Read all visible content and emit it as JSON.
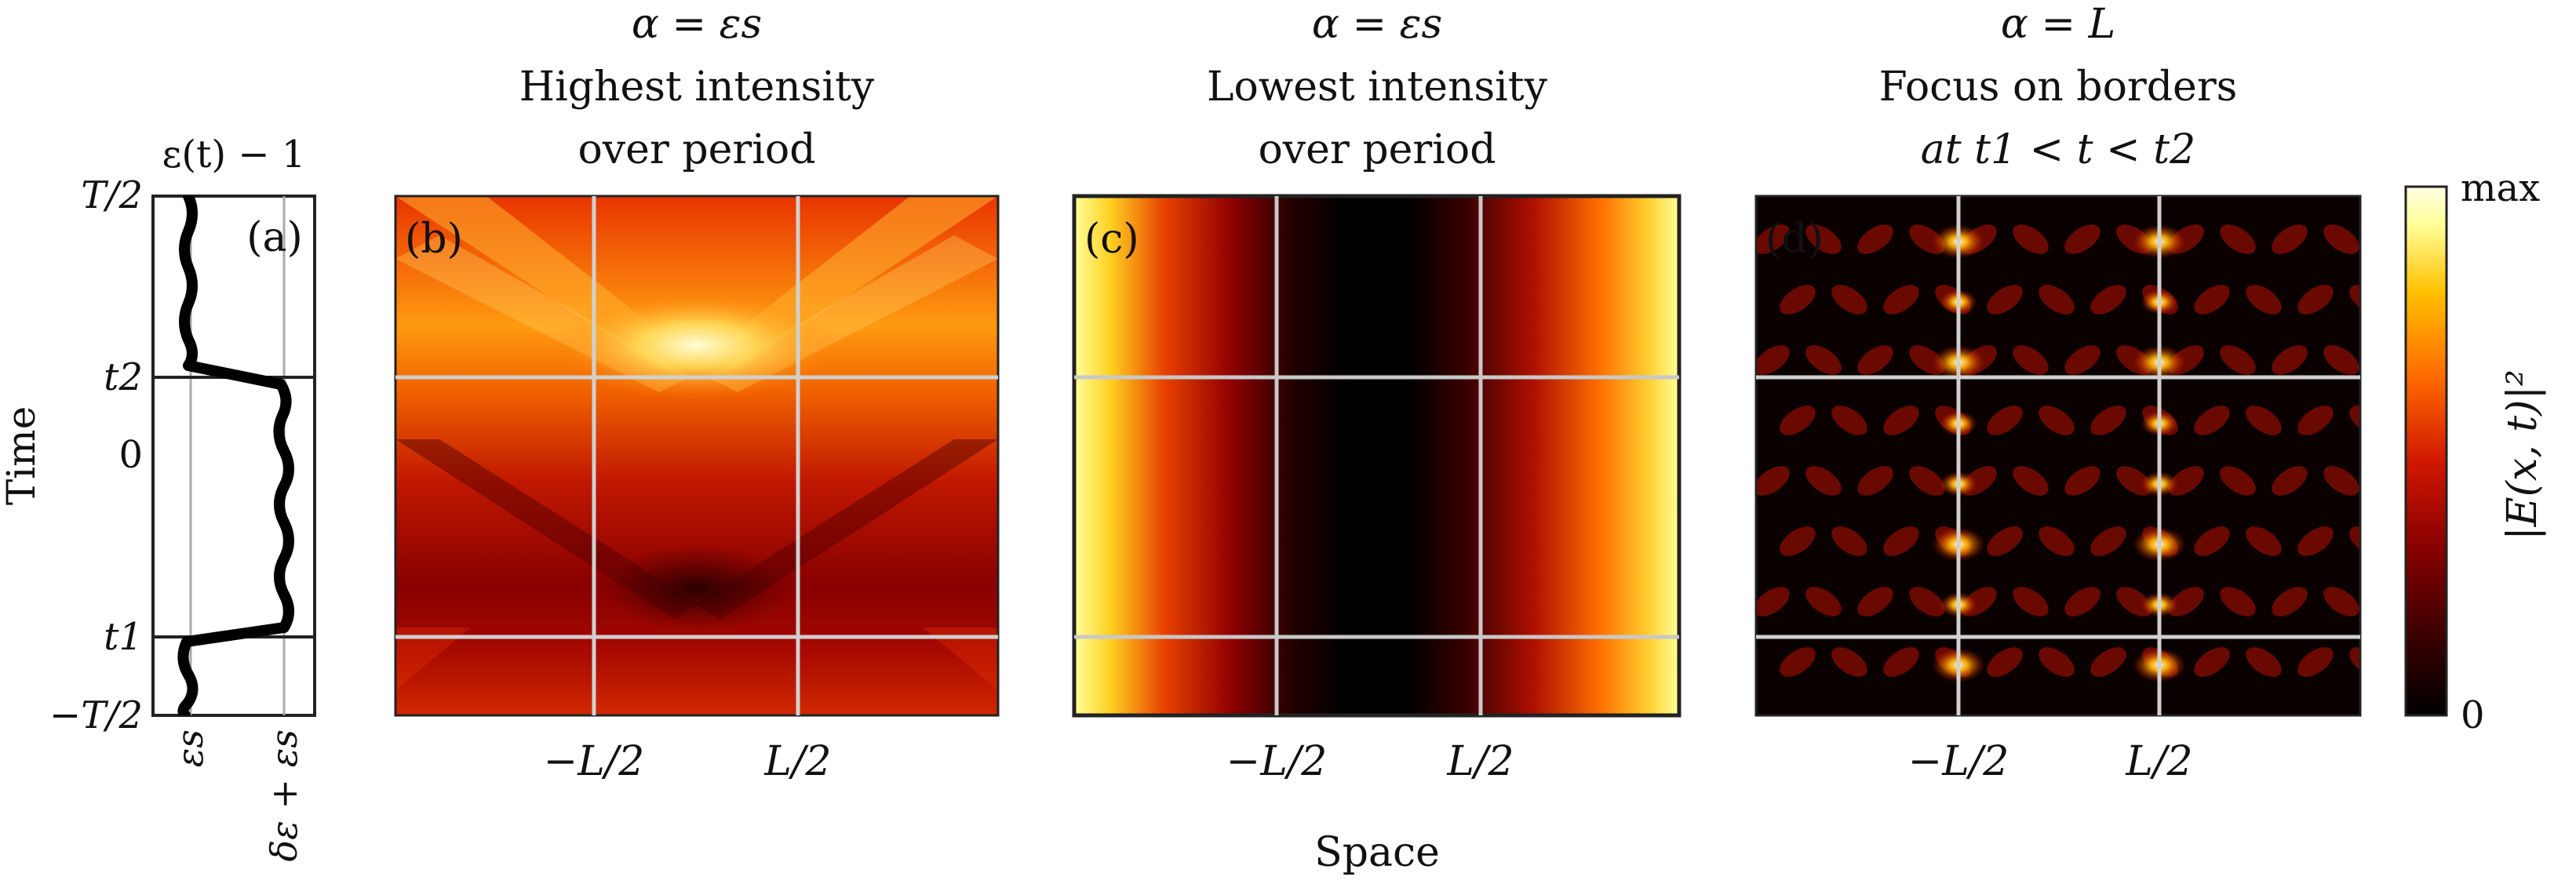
{
  "chart_data": [
    {
      "id": "a",
      "type": "line",
      "panel_label": "(a)",
      "title": "ε(t) − 1",
      "ylabel": "Time",
      "yticks": [
        "−T/2",
        "t1",
        "0",
        "t2",
        "T/2"
      ],
      "xticks": [
        "εs",
        "δε + εs"
      ],
      "x_levels": [
        "εs",
        "δε + εs"
      ],
      "y_range": [
        -0.5,
        0.5
      ],
      "t1": -0.35,
      "t2": 0.15,
      "series": [
        {
          "segment": "t < t1",
          "level": "εs"
        },
        {
          "segment": "t1 < t < t2",
          "level": "δε + εs"
        },
        {
          "segment": "t > t2",
          "level": "εs"
        }
      ]
    },
    {
      "id": "b",
      "type": "heatmap",
      "panel_label": "(b)",
      "title_lines": [
        "α = εs",
        "Highest intensity",
        "over period"
      ],
      "xticks": [
        "−L/2",
        "L/2"
      ],
      "hlines": [
        "t1",
        "t2"
      ],
      "vlines": [
        "−L/2",
        "L/2"
      ]
    },
    {
      "id": "c",
      "type": "heatmap",
      "panel_label": "(c)",
      "title_lines": [
        "α = εs",
        "Lowest intensity",
        "over period"
      ],
      "xticks": [
        "−L/2",
        "L/2"
      ],
      "xlabel": "Space",
      "hlines": [
        "t1",
        "t2"
      ],
      "vlines": [
        "−L/2",
        "L/2"
      ]
    },
    {
      "id": "d",
      "type": "heatmap",
      "panel_label": "(d)",
      "title_lines": [
        "α = L",
        "Focus on borders",
        "at t1 < t < t2"
      ],
      "xticks": [
        "−L/2",
        "L/2"
      ],
      "hlines": [
        "t1",
        "t2"
      ],
      "vlines": [
        "−L/2",
        "L/2"
      ]
    }
  ],
  "colorbar": {
    "label": "|E(x, t)|²",
    "ticks": [
      "0",
      "max"
    ],
    "colors": [
      "#000000",
      "#3a0000",
      "#8a0000",
      "#d01800",
      "#ff6a00",
      "#ffc000",
      "#ffff9a",
      "#ffffe6"
    ]
  },
  "figure": {
    "xlabel": "Space"
  }
}
